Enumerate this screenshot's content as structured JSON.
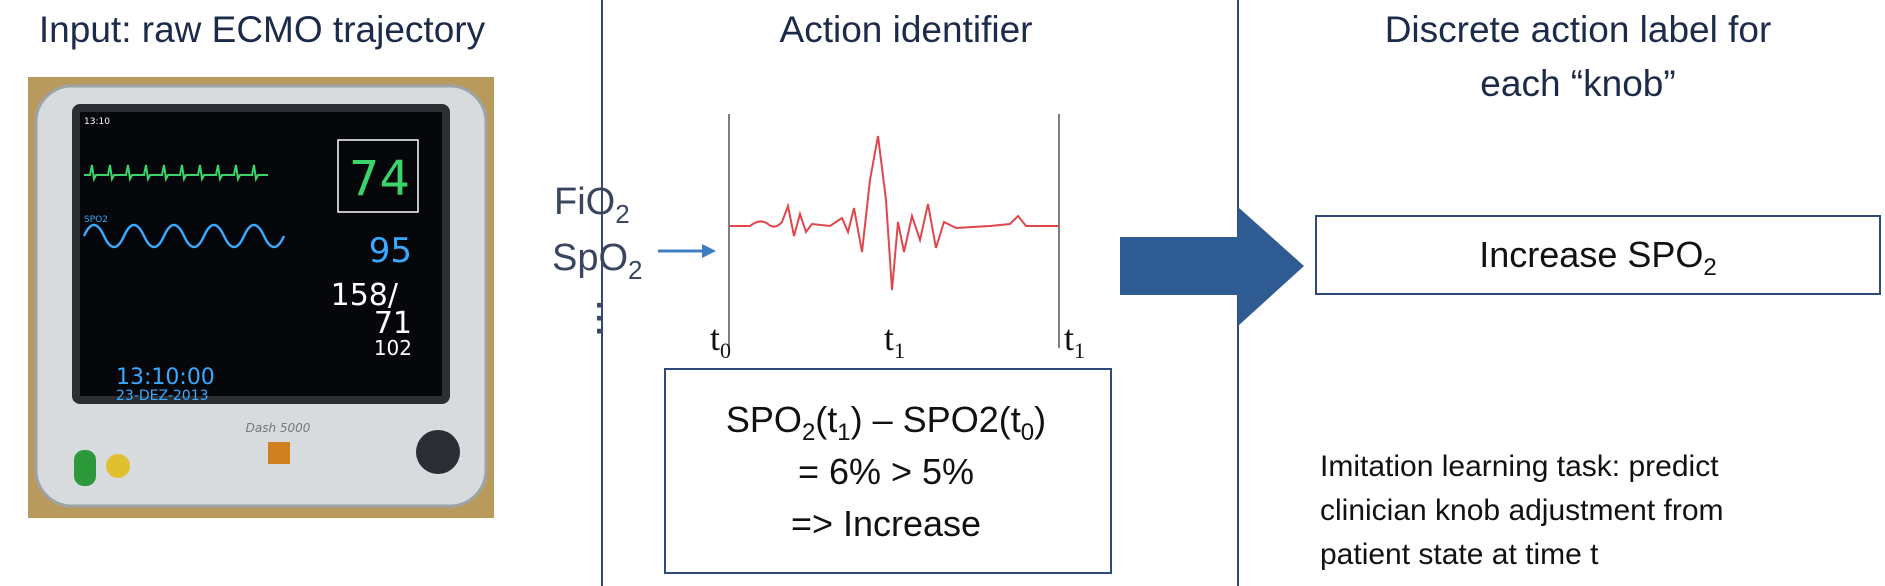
{
  "titles": {
    "input": "Input: raw ECMO trajectory",
    "identifier": "Action identifier",
    "output": [
      "Discrete action label for",
      "each “knob”"
    ]
  },
  "monitor": {
    "time_small": "13:10",
    "hr": "74",
    "spo2": "95",
    "bp_sys": "158/",
    "bp_dia": "71",
    "bp_mean": "102",
    "clock": "13:10:00",
    "date": "23-DEZ-2013",
    "model": "Dash 5000",
    "spo2_label": "SPO2"
  },
  "inputs": {
    "fio2": [
      "FiO",
      "2"
    ],
    "spo2": [
      "SpO",
      "2"
    ],
    "more": "⋮"
  },
  "signal": {
    "t0": [
      "t",
      "0"
    ],
    "t1a": [
      "t",
      "1"
    ],
    "t1b": [
      "t",
      "1"
    ]
  },
  "rule": {
    "line1": [
      "SPO",
      "2",
      "(t",
      "1",
      ") – SPO2(t",
      "0",
      ")"
    ],
    "line2": "= 6% > 5%",
    "line3": "=> Increase"
  },
  "label": [
    "Increase SPO",
    "2"
  ],
  "note": [
    "Imitation learning task: predict",
    "clinician knob adjustment from",
    "patient state at time t"
  ]
}
